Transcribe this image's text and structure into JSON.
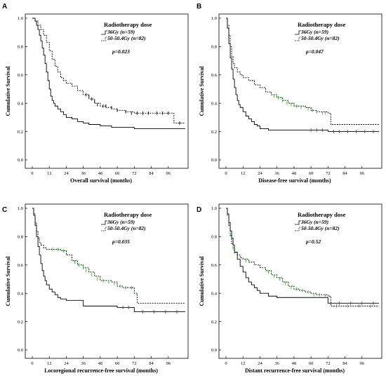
{
  "chart_data": [
    {
      "type": "line",
      "panel": "A",
      "xlabel": "Overall survival (months)",
      "ylabel": "Cumulative Survival",
      "xlim": [
        0,
        108
      ],
      "ylim": [
        0,
        1.0
      ],
      "xticks": [
        0,
        12,
        24,
        36,
        48,
        60,
        72,
        84,
        96
      ],
      "yticks": [
        0.0,
        0.2,
        0.4,
        0.6,
        0.8,
        1.0
      ],
      "legend_title": "Radiotherapy dose",
      "pvalue": "p=0.023",
      "series": [
        {
          "name": "36Gy (n=59)",
          "style": "solid",
          "censor_color": "#000000",
          "x": [
            0,
            2,
            3,
            4,
            5,
            6,
            7,
            8,
            9,
            10,
            11,
            12,
            13,
            14,
            15,
            16,
            18,
            20,
            22,
            24,
            28,
            32,
            36,
            40,
            48,
            56,
            60,
            72,
            108
          ],
          "y": [
            1.0,
            0.98,
            0.95,
            0.92,
            0.88,
            0.84,
            0.79,
            0.74,
            0.68,
            0.62,
            0.56,
            0.5,
            0.45,
            0.42,
            0.4,
            0.38,
            0.36,
            0.34,
            0.32,
            0.3,
            0.29,
            0.27,
            0.26,
            0.25,
            0.24,
            0.23,
            0.23,
            0.22,
            0.22
          ],
          "censored": []
        },
        {
          "name": "50-50.4Gy (n=82)",
          "style": "dashed",
          "censor_color": "#000000",
          "x": [
            0,
            2,
            4,
            6,
            8,
            10,
            12,
            14,
            16,
            18,
            20,
            22,
            24,
            28,
            32,
            36,
            40,
            44,
            48,
            52,
            56,
            60,
            66,
            72,
            84,
            96,
            100,
            108
          ],
          "y": [
            1.0,
            0.98,
            0.95,
            0.92,
            0.88,
            0.83,
            0.77,
            0.71,
            0.66,
            0.62,
            0.58,
            0.56,
            0.54,
            0.52,
            0.49,
            0.46,
            0.43,
            0.4,
            0.38,
            0.37,
            0.36,
            0.35,
            0.34,
            0.33,
            0.33,
            0.33,
            0.26,
            0.26
          ],
          "censored": [
            [
              38,
              0.46
            ],
            [
              40,
              0.45
            ],
            [
              42,
              0.43
            ],
            [
              44,
              0.41
            ],
            [
              46,
              0.39
            ],
            [
              50,
              0.38
            ],
            [
              52,
              0.38
            ],
            [
              56,
              0.37
            ],
            [
              60,
              0.35
            ],
            [
              66,
              0.34
            ],
            [
              70,
              0.33
            ],
            [
              74,
              0.33
            ],
            [
              78,
              0.33
            ],
            [
              82,
              0.33
            ],
            [
              88,
              0.33
            ],
            [
              92,
              0.33
            ],
            [
              96,
              0.33
            ],
            [
              104,
              0.26
            ]
          ]
        }
      ]
    },
    {
      "type": "line",
      "panel": "B",
      "xlabel": "Disease-free survival (months)",
      "ylabel": "Cumulative Survival",
      "xlim": [
        0,
        108
      ],
      "ylim": [
        0,
        1.0
      ],
      "xticks": [
        0,
        12,
        24,
        36,
        48,
        60,
        72,
        84,
        96
      ],
      "yticks": [
        0.0,
        0.2,
        0.4,
        0.6,
        0.8,
        1.0
      ],
      "legend_title": "Radiotherapy dose",
      "pvalue": "p=0.047",
      "series": [
        {
          "name": "36Gy (n=59)",
          "style": "solid",
          "censor_color": "#1f4fd6",
          "x": [
            0,
            1,
            2,
            3,
            4,
            5,
            6,
            7,
            8,
            9,
            10,
            12,
            14,
            16,
            18,
            20,
            22,
            24,
            30,
            36,
            48,
            72,
            108
          ],
          "y": [
            1.0,
            0.93,
            0.82,
            0.72,
            0.64,
            0.57,
            0.51,
            0.46,
            0.42,
            0.39,
            0.37,
            0.34,
            0.31,
            0.29,
            0.27,
            0.25,
            0.24,
            0.22,
            0.21,
            0.21,
            0.21,
            0.2,
            0.2
          ],
          "censored": [
            [
              60,
              0.21
            ],
            [
              64,
              0.21
            ],
            [
              68,
              0.21
            ],
            [
              76,
              0.2
            ],
            [
              80,
              0.2
            ],
            [
              86,
              0.2
            ],
            [
              92,
              0.2
            ],
            [
              98,
              0.2
            ],
            [
              104,
              0.2
            ]
          ]
        },
        {
          "name": "50-50.4Gy (n=82)",
          "style": "dashed",
          "censor_color": "#2db52d",
          "x": [
            0,
            1,
            2,
            3,
            4,
            5,
            6,
            8,
            10,
            12,
            16,
            20,
            24,
            28,
            32,
            36,
            40,
            44,
            48,
            56,
            60,
            64,
            72,
            74,
            108
          ],
          "y": [
            1.0,
            0.95,
            0.88,
            0.8,
            0.73,
            0.68,
            0.65,
            0.62,
            0.6,
            0.58,
            0.56,
            0.53,
            0.51,
            0.48,
            0.46,
            0.44,
            0.42,
            0.4,
            0.38,
            0.37,
            0.35,
            0.34,
            0.33,
            0.25,
            0.25
          ],
          "censored": [
            [
              34,
              0.45
            ],
            [
              37,
              0.44
            ],
            [
              40,
              0.42
            ],
            [
              43,
              0.4
            ],
            [
              46,
              0.39
            ],
            [
              50,
              0.38
            ],
            [
              53,
              0.37
            ],
            [
              58,
              0.36
            ],
            [
              61,
              0.35
            ],
            [
              64,
              0.34
            ],
            [
              68,
              0.33
            ],
            [
              70,
              0.33
            ]
          ]
        }
      ]
    },
    {
      "type": "line",
      "panel": "C",
      "xlabel": "Locoregional recurrence-free survival (months)",
      "ylabel": "Cumulative Survival",
      "xlim": [
        0,
        108
      ],
      "ylim": [
        0,
        1.0
      ],
      "xticks": [
        0,
        12,
        24,
        36,
        48,
        60,
        72,
        84,
        96
      ],
      "yticks": [
        0.0,
        0.2,
        0.4,
        0.6,
        0.8,
        1.0
      ],
      "legend_title": "Radiotherapy dose",
      "pvalue": "p=0.035",
      "series": [
        {
          "name": "36Gy (n=59)",
          "style": "solid",
          "censor_color": "#1f4fd6",
          "x": [
            0,
            1,
            2,
            3,
            4,
            5,
            6,
            7,
            8,
            9,
            10,
            12,
            14,
            16,
            18,
            20,
            24,
            30,
            36,
            48,
            60,
            72,
            108
          ],
          "y": [
            1.0,
            0.95,
            0.88,
            0.8,
            0.73,
            0.67,
            0.61,
            0.56,
            0.52,
            0.49,
            0.46,
            0.43,
            0.41,
            0.39,
            0.37,
            0.36,
            0.35,
            0.35,
            0.31,
            0.31,
            0.3,
            0.27,
            0.27
          ],
          "censored": [
            [
              64,
              0.3
            ],
            [
              68,
              0.3
            ],
            [
              78,
              0.27
            ],
            [
              86,
              0.27
            ],
            [
              94,
              0.27
            ],
            [
              102,
              0.27
            ]
          ]
        },
        {
          "name": "50-50.4Gy (n=82)",
          "style": "dashed",
          "censor_color": "#2db52d",
          "x": [
            0,
            1,
            2,
            3,
            4,
            5,
            6,
            8,
            10,
            12,
            16,
            20,
            24,
            28,
            32,
            36,
            40,
            44,
            48,
            56,
            60,
            64,
            72,
            74,
            108
          ],
          "y": [
            1.0,
            0.96,
            0.9,
            0.84,
            0.79,
            0.76,
            0.74,
            0.72,
            0.71,
            0.71,
            0.71,
            0.7,
            0.67,
            0.63,
            0.6,
            0.58,
            0.55,
            0.52,
            0.49,
            0.48,
            0.45,
            0.44,
            0.4,
            0.33,
            0.33
          ],
          "censored": [
            [
              14,
              0.71
            ],
            [
              18,
              0.71
            ],
            [
              22,
              0.7
            ],
            [
              30,
              0.62
            ],
            [
              33,
              0.6
            ],
            [
              36,
              0.58
            ],
            [
              38,
              0.56
            ],
            [
              42,
              0.53
            ],
            [
              46,
              0.5
            ],
            [
              50,
              0.49
            ],
            [
              54,
              0.48
            ],
            [
              58,
              0.47
            ],
            [
              62,
              0.45
            ],
            [
              66,
              0.44
            ],
            [
              70,
              0.44
            ]
          ]
        }
      ]
    },
    {
      "type": "line",
      "panel": "D",
      "xlabel": "Distant recurrence-free survival (months)",
      "ylabel": "Cumulative Survival",
      "xlim": [
        0,
        108
      ],
      "ylim": [
        0,
        1.0
      ],
      "xticks": [
        0,
        12,
        24,
        36,
        48,
        60,
        72,
        84,
        96
      ],
      "yticks": [
        0.0,
        0.2,
        0.4,
        0.6,
        0.8,
        1.0
      ],
      "legend_title": "Radiotherapy dose",
      "pvalue": "p=0.52",
      "series": [
        {
          "name": "36Gy (n=59)",
          "style": "solid",
          "censor_color": "#1f4fd6",
          "x": [
            0,
            1,
            2,
            3,
            4,
            5,
            6,
            8,
            10,
            12,
            14,
            16,
            18,
            20,
            22,
            24,
            30,
            36,
            48,
            60,
            72,
            108
          ],
          "y": [
            1.0,
            0.96,
            0.9,
            0.84,
            0.79,
            0.74,
            0.69,
            0.64,
            0.59,
            0.55,
            0.51,
            0.48,
            0.46,
            0.44,
            0.42,
            0.4,
            0.38,
            0.37,
            0.37,
            0.37,
            0.33,
            0.33
          ],
          "censored": [
            [
              2,
              0.9
            ],
            [
              4,
              0.79
            ],
            [
              6,
              0.69
            ],
            [
              80,
              0.33
            ],
            [
              88,
              0.33
            ],
            [
              96,
              0.33
            ],
            [
              104,
              0.33
            ]
          ]
        },
        {
          "name": "50-50.4Gy (n=82)",
          "style": "dashed",
          "censor_color": "#2db52d",
          "x": [
            0,
            1,
            2,
            3,
            4,
            5,
            6,
            8,
            10,
            12,
            16,
            20,
            24,
            28,
            32,
            36,
            40,
            44,
            48,
            52,
            56,
            60,
            64,
            72,
            74,
            108
          ],
          "y": [
            1.0,
            0.95,
            0.88,
            0.81,
            0.75,
            0.72,
            0.69,
            0.67,
            0.65,
            0.64,
            0.62,
            0.6,
            0.58,
            0.56,
            0.53,
            0.51,
            0.48,
            0.45,
            0.43,
            0.42,
            0.41,
            0.4,
            0.39,
            0.38,
            0.31,
            0.31
          ],
          "censored": [
            [
              3,
              0.81
            ],
            [
              5,
              0.72
            ],
            [
              14,
              0.63
            ],
            [
              30,
              0.55
            ],
            [
              34,
              0.52
            ],
            [
              38,
              0.5
            ],
            [
              42,
              0.47
            ],
            [
              46,
              0.44
            ],
            [
              50,
              0.43
            ],
            [
              54,
              0.42
            ],
            [
              58,
              0.41
            ],
            [
              62,
              0.39
            ],
            [
              66,
              0.39
            ],
            [
              70,
              0.38
            ],
            [
              78,
              0.31
            ],
            [
              86,
              0.31
            ],
            [
              94,
              0.31
            ],
            [
              102,
              0.31
            ]
          ]
        }
      ]
    }
  ]
}
